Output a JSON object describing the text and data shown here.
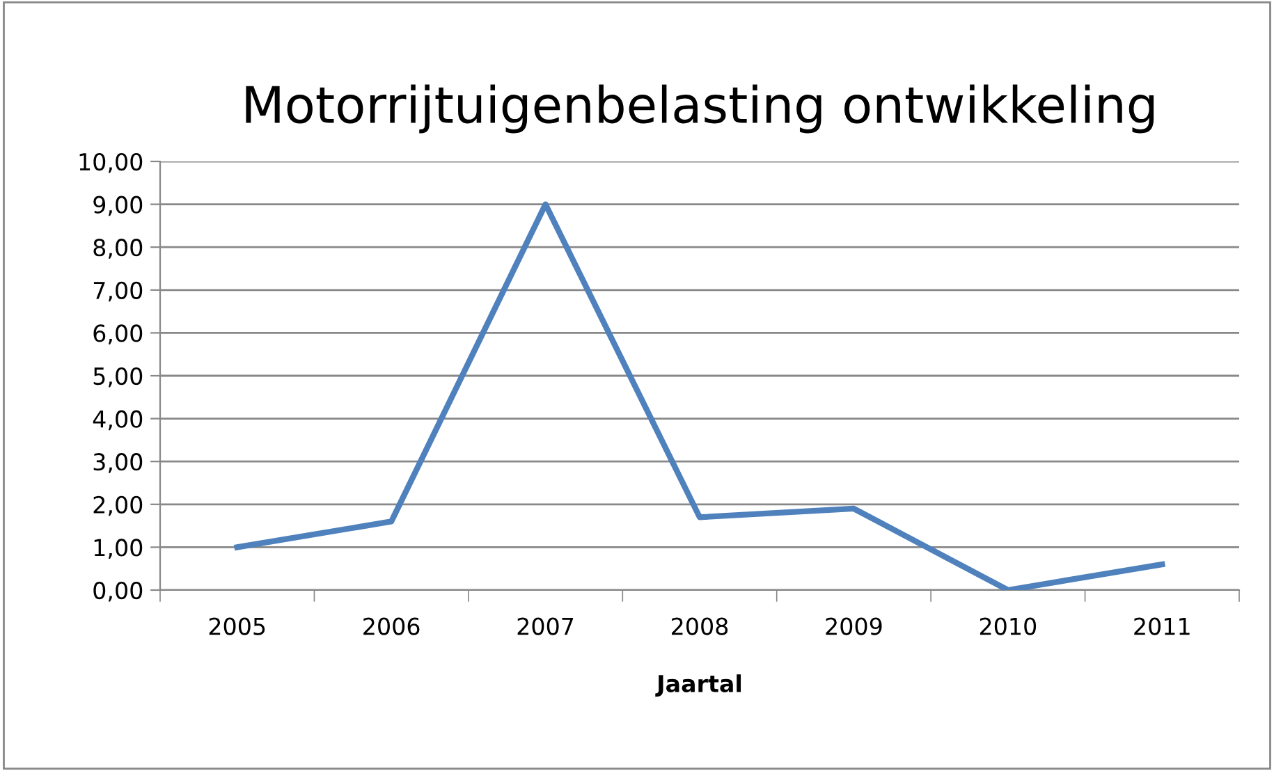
{
  "chart_data": {
    "type": "line",
    "title": "Motorrijtuigenbelasting ontwikkeling",
    "xlabel": "Jaartal",
    "categories": [
      "2005",
      "2006",
      "2007",
      "2008",
      "2009",
      "2010",
      "2011"
    ],
    "series": [
      {
        "color": "#4f81bd",
        "values": [
          1.0,
          1.6,
          9.0,
          1.7,
          1.9,
          0.0,
          0.6
        ]
      }
    ],
    "ylim": [
      0,
      10
    ],
    "yticks": [
      {
        "value": 0,
        "label": "0,00"
      },
      {
        "value": 1,
        "label": "1,00"
      },
      {
        "value": 2,
        "label": "2,00"
      },
      {
        "value": 3,
        "label": "3,00"
      },
      {
        "value": 4,
        "label": "4,00"
      },
      {
        "value": 5,
        "label": "5,00"
      },
      {
        "value": 6,
        "label": "6,00"
      },
      {
        "value": 7,
        "label": "7,00"
      },
      {
        "value": 8,
        "label": "8,00"
      },
      {
        "value": 9,
        "label": "9,00"
      },
      {
        "value": 10,
        "label": "10,00"
      }
    ],
    "grid": "y",
    "legend": false,
    "marker": "none",
    "line_style": "solid"
  }
}
